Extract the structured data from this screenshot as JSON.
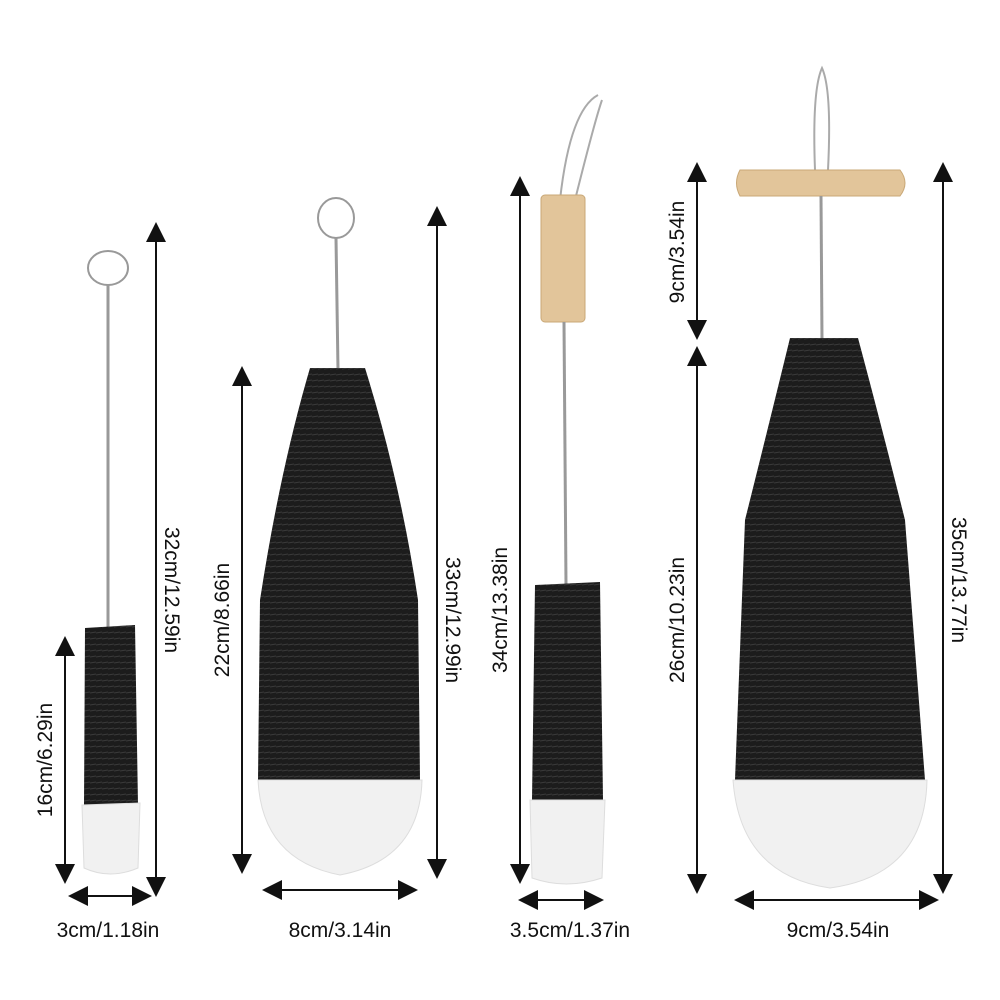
{
  "colors": {
    "bristle": "#1c1c1c",
    "tip": "#f1f1f1",
    "wood": "#e2c59a",
    "wire": "#9a9a9a",
    "arrow": "#111111"
  },
  "brushes": [
    {
      "height_label": "32cm/12.59in",
      "bristle_label": "16cm/6.29in",
      "width_label": "3cm/1.18in",
      "handle": "wire-loop"
    },
    {
      "height_label": "33cm/12.99in",
      "bristle_label": "22cm/8.66in",
      "width_label": "8cm/3.14in",
      "handle": "wire-loop"
    },
    {
      "height_label": "34cm/13.38in",
      "width_label": "3.5cm/1.37in",
      "handle": "wood-vertical"
    },
    {
      "height_label": "35cm/13.77in",
      "handle_label": "9cm/3.54in",
      "bristle_label": "26cm/10.23in",
      "width_label": "9cm/3.54in",
      "handle": "wood-horizontal"
    }
  ]
}
